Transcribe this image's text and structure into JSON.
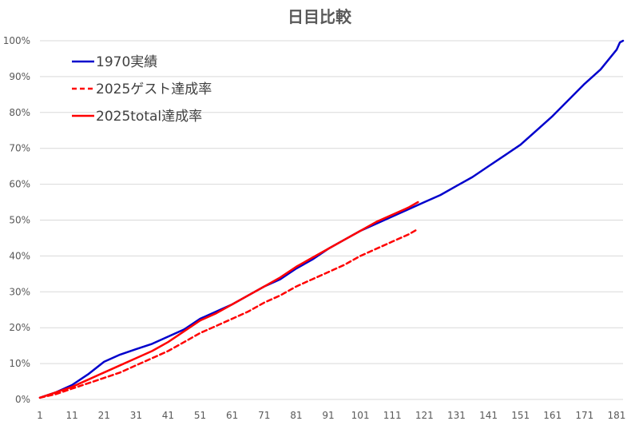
{
  "chart_data": {
    "type": "line",
    "title": "日目比較",
    "xlabel": "",
    "ylabel": "",
    "x_ticks": [
      "1",
      "11",
      "21",
      "31",
      "41",
      "51",
      "61",
      "71",
      "81",
      "91",
      "101",
      "111",
      "121",
      "131",
      "141",
      "151",
      "161",
      "171",
      "181"
    ],
    "y_ticks": [
      "0%",
      "10%",
      "20%",
      "30%",
      "40%",
      "50%",
      "60%",
      "70%",
      "80%",
      "90%",
      "100%"
    ],
    "xlim": [
      1,
      183
    ],
    "ylim": [
      0,
      100
    ],
    "grid": "horizontal",
    "legend_position": "top-left",
    "series": [
      {
        "name": "1970実績",
        "color": "#0000cc",
        "style": "solid",
        "points": [
          [
            1,
            0.5
          ],
          [
            6,
            2
          ],
          [
            11,
            4
          ],
          [
            16,
            7
          ],
          [
            21,
            10.5
          ],
          [
            26,
            12.5
          ],
          [
            31,
            14
          ],
          [
            36,
            15.5
          ],
          [
            41,
            17.5
          ],
          [
            46,
            19.5
          ],
          [
            51,
            22.5
          ],
          [
            56,
            24.5
          ],
          [
            61,
            26.5
          ],
          [
            66,
            29
          ],
          [
            71,
            31.5
          ],
          [
            76,
            33.5
          ],
          [
            81,
            36.5
          ],
          [
            86,
            39
          ],
          [
            91,
            42
          ],
          [
            96,
            44.5
          ],
          [
            101,
            47
          ],
          [
            106,
            49
          ],
          [
            111,
            51
          ],
          [
            116,
            53
          ],
          [
            121,
            55
          ],
          [
            126,
            57
          ],
          [
            131,
            59.5
          ],
          [
            136,
            62
          ],
          [
            141,
            65
          ],
          [
            146,
            68
          ],
          [
            151,
            71
          ],
          [
            156,
            75
          ],
          [
            161,
            79
          ],
          [
            166,
            83.5
          ],
          [
            171,
            88
          ],
          [
            176,
            92
          ],
          [
            181,
            97.5
          ],
          [
            182,
            99.5
          ],
          [
            183,
            100
          ]
        ]
      },
      {
        "name": "2025ゲスト達成率",
        "color": "#ff0000",
        "style": "dashed",
        "points": [
          [
            1,
            0.5
          ],
          [
            6,
            1.5
          ],
          [
            11,
            3
          ],
          [
            16,
            4.5
          ],
          [
            21,
            6
          ],
          [
            26,
            7.5
          ],
          [
            31,
            9.5
          ],
          [
            36,
            11.5
          ],
          [
            41,
            13.5
          ],
          [
            46,
            16
          ],
          [
            51,
            18.5
          ],
          [
            56,
            20.5
          ],
          [
            61,
            22.5
          ],
          [
            66,
            24.5
          ],
          [
            71,
            27
          ],
          [
            76,
            29
          ],
          [
            81,
            31.5
          ],
          [
            86,
            33.5
          ],
          [
            91,
            35.5
          ],
          [
            96,
            37.5
          ],
          [
            101,
            40
          ],
          [
            106,
            42
          ],
          [
            111,
            44
          ],
          [
            116,
            46
          ],
          [
            119,
            47.5
          ]
        ]
      },
      {
        "name": "2025total達成率",
        "color": "#ff0000",
        "style": "solid",
        "points": [
          [
            1,
            0.5
          ],
          [
            6,
            2
          ],
          [
            11,
            3.5
          ],
          [
            16,
            5.5
          ],
          [
            21,
            7.5
          ],
          [
            26,
            9.5
          ],
          [
            31,
            11.5
          ],
          [
            36,
            13.5
          ],
          [
            41,
            16
          ],
          [
            46,
            19
          ],
          [
            51,
            22
          ],
          [
            56,
            24
          ],
          [
            61,
            26.5
          ],
          [
            66,
            29
          ],
          [
            71,
            31.5
          ],
          [
            76,
            34
          ],
          [
            81,
            37
          ],
          [
            86,
            39.5
          ],
          [
            91,
            42
          ],
          [
            96,
            44.5
          ],
          [
            101,
            47
          ],
          [
            106,
            49.5
          ],
          [
            111,
            51.5
          ],
          [
            116,
            53.5
          ],
          [
            119,
            55
          ]
        ]
      }
    ]
  }
}
